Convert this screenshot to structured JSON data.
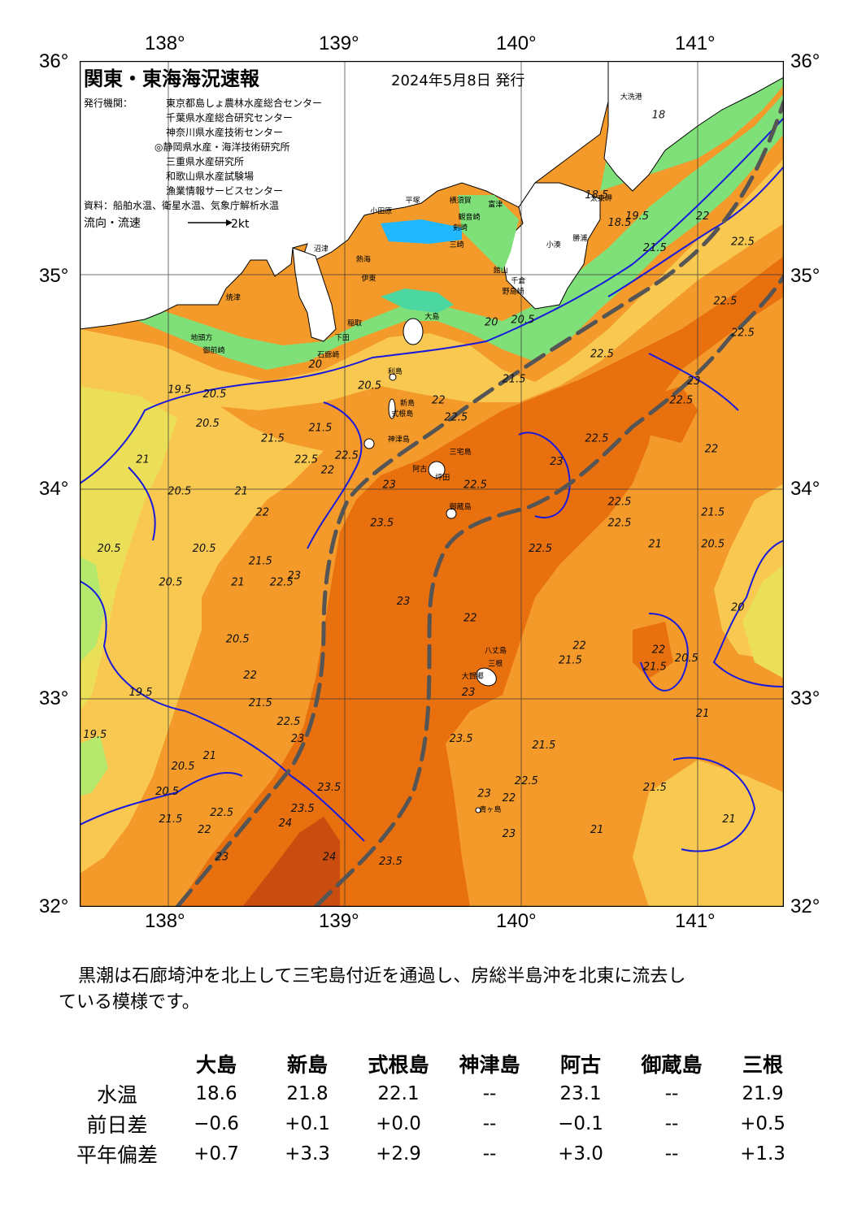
{
  "map": {
    "title": "関東・東海海況速報",
    "date": "2024年5月8日 発行",
    "publisher_label": "発行機関：",
    "publishers": [
      "東京都島しょ農林水産総合センター",
      "千葉県水産総合研究センター",
      "神奈川県水産技術センター",
      "◎静岡県水産・海洋技術研究所",
      "三重県水産研究所",
      "和歌山県水産試験場",
      "漁業情報サービスセンター"
    ],
    "source": "資料：船舶水温、衛星水温、気象庁解析水温",
    "flow_label": "流向・流速",
    "flow_scale": "2kt",
    "lon_labels": [
      "138°",
      "139°",
      "140°",
      "141°"
    ],
    "lat_labels": [
      "36°",
      "35°",
      "34°",
      "33°",
      "32°"
    ],
    "colors": {
      "kuroshio_axis": "#555555",
      "isotherm": "#1a1adc",
      "land": "#ffffff",
      "sea_warm": "#e8700f",
      "sea_hot": "#c84d0e",
      "sea_mid": "#f39a2a",
      "sea_cool": "#f8c850",
      "sea_cooler": "#ecdf58",
      "sea_cold": "#7fe07a",
      "sea_colder": "#4cd6a0"
    },
    "place_names": [
      {
        "name": "大洗港",
        "lon": 140.57,
        "lat": 35.82
      },
      {
        "name": "太東岬",
        "lon": 140.4,
        "lat": 35.34
      },
      {
        "name": "勝浦",
        "lon": 140.3,
        "lat": 35.15
      },
      {
        "name": "小湊",
        "lon": 140.15,
        "lat": 35.12
      },
      {
        "name": "富津",
        "lon": 139.82,
        "lat": 35.31
      },
      {
        "name": "館山",
        "lon": 139.85,
        "lat": 35.0
      },
      {
        "name": "千倉",
        "lon": 139.95,
        "lat": 34.95
      },
      {
        "name": "野島崎",
        "lon": 139.9,
        "lat": 34.9
      },
      {
        "name": "横須賀",
        "lon": 139.6,
        "lat": 35.33
      },
      {
        "name": "平塚",
        "lon": 139.35,
        "lat": 35.33
      },
      {
        "name": "小田原",
        "lon": 139.15,
        "lat": 35.28
      },
      {
        "name": "観音崎",
        "lon": 139.65,
        "lat": 35.25
      },
      {
        "name": "剣崎",
        "lon": 139.62,
        "lat": 35.2
      },
      {
        "name": "三崎",
        "lon": 139.6,
        "lat": 35.12
      },
      {
        "name": "熱海",
        "lon": 139.07,
        "lat": 35.05
      },
      {
        "name": "伊東",
        "lon": 139.1,
        "lat": 34.96
      },
      {
        "name": "稲取",
        "lon": 139.02,
        "lat": 34.75
      },
      {
        "name": "下田",
        "lon": 138.95,
        "lat": 34.68
      },
      {
        "name": "石廊崎",
        "lon": 138.85,
        "lat": 34.6
      },
      {
        "name": "大島",
        "lon": 139.46,
        "lat": 34.78
      },
      {
        "name": "利島",
        "lon": 139.25,
        "lat": 34.52
      },
      {
        "name": "新島",
        "lon": 139.32,
        "lat": 34.37
      },
      {
        "name": "式根島",
        "lon": 139.27,
        "lat": 34.32
      },
      {
        "name": "神津島",
        "lon": 139.25,
        "lat": 34.2
      },
      {
        "name": "三宅島",
        "lon": 139.6,
        "lat": 34.14
      },
      {
        "name": "阿古",
        "lon": 139.39,
        "lat": 34.06
      },
      {
        "name": "坪田",
        "lon": 139.52,
        "lat": 34.02
      },
      {
        "name": "御蔵島",
        "lon": 139.6,
        "lat": 33.88
      },
      {
        "name": "八丈島",
        "lon": 139.8,
        "lat": 33.2
      },
      {
        "name": "三根",
        "lon": 139.82,
        "lat": 33.14
      },
      {
        "name": "大賀郷",
        "lon": 139.67,
        "lat": 33.08
      },
      {
        "name": "青ヶ島",
        "lon": 139.77,
        "lat": 32.45
      },
      {
        "name": "沼津",
        "lon": 138.83,
        "lat": 35.1
      },
      {
        "name": "焼津",
        "lon": 138.33,
        "lat": 34.87
      },
      {
        "name": "御前崎",
        "lon": 138.2,
        "lat": 34.62
      },
      {
        "name": "地頭方",
        "lon": 138.13,
        "lat": 34.68
      }
    ],
    "isotherm_labels": [
      {
        "text": "18",
        "lon": 140.75,
        "lat": 35.73
      },
      {
        "text": "18.5",
        "lon": 140.37,
        "lat": 35.35
      },
      {
        "text": "18.5",
        "lon": 140.5,
        "lat": 35.22
      },
      {
        "text": "19.5",
        "lon": 140.6,
        "lat": 35.25
      },
      {
        "text": "21.5",
        "lon": 140.7,
        "lat": 35.1
      },
      {
        "text": "22",
        "lon": 141.0,
        "lat": 35.25
      },
      {
        "text": "22.5",
        "lon": 141.2,
        "lat": 35.13
      },
      {
        "text": "22.5",
        "lon": 141.1,
        "lat": 34.85
      },
      {
        "text": "22.5",
        "lon": 141.2,
        "lat": 34.7
      },
      {
        "text": "20",
        "lon": 139.8,
        "lat": 34.75
      },
      {
        "text": "20.5",
        "lon": 139.95,
        "lat": 34.76
      },
      {
        "text": "22",
        "lon": 139.5,
        "lat": 34.38
      },
      {
        "text": "22.5",
        "lon": 140.4,
        "lat": 34.6
      },
      {
        "text": "21.5",
        "lon": 139.9,
        "lat": 34.48
      },
      {
        "text": "22.5",
        "lon": 140.85,
        "lat": 34.38
      },
      {
        "text": "23",
        "lon": 140.95,
        "lat": 34.47
      },
      {
        "text": "22.5",
        "lon": 139.57,
        "lat": 34.3
      },
      {
        "text": "19.5",
        "lon": 138.0,
        "lat": 34.43
      },
      {
        "text": "20.5",
        "lon": 138.2,
        "lat": 34.41
      },
      {
        "text": "20",
        "lon": 138.8,
        "lat": 34.55
      },
      {
        "text": "20.5",
        "lon": 139.08,
        "lat": 34.45
      },
      {
        "text": "20.5",
        "lon": 138.16,
        "lat": 34.27
      },
      {
        "text": "21.5",
        "lon": 138.53,
        "lat": 34.2
      },
      {
        "text": "21.5",
        "lon": 138.8,
        "lat": 34.25
      },
      {
        "text": "22.5",
        "lon": 138.95,
        "lat": 34.12
      },
      {
        "text": "22.5",
        "lon": 138.72,
        "lat": 34.1
      },
      {
        "text": "22",
        "lon": 138.87,
        "lat": 34.05
      },
      {
        "text": "23",
        "lon": 139.22,
        "lat": 33.98
      },
      {
        "text": "22.5",
        "lon": 139.68,
        "lat": 33.98
      },
      {
        "text": "23",
        "lon": 140.17,
        "lat": 34.09
      },
      {
        "text": "22.5",
        "lon": 140.37,
        "lat": 34.2
      },
      {
        "text": "22",
        "lon": 141.05,
        "lat": 34.15
      },
      {
        "text": "21",
        "lon": 138.38,
        "lat": 33.95
      },
      {
        "text": "22",
        "lon": 138.5,
        "lat": 33.85
      },
      {
        "text": "21",
        "lon": 137.82,
        "lat": 34.1
      },
      {
        "text": "20.5",
        "lon": 138.0,
        "lat": 33.95
      },
      {
        "text": "20.5",
        "lon": 137.6,
        "lat": 33.68
      },
      {
        "text": "23.5",
        "lon": 139.15,
        "lat": 33.8
      },
      {
        "text": "22.5",
        "lon": 140.05,
        "lat": 33.68
      },
      {
        "text": "22.5",
        "lon": 140.5,
        "lat": 33.8
      },
      {
        "text": "22.5",
        "lon": 140.5,
        "lat": 33.9
      },
      {
        "text": "21",
        "lon": 140.73,
        "lat": 33.7
      },
      {
        "text": "21.5",
        "lon": 141.03,
        "lat": 33.85
      },
      {
        "text": "20.5",
        "lon": 141.03,
        "lat": 33.7
      },
      {
        "text": "20.5",
        "lon": 138.14,
        "lat": 33.68
      },
      {
        "text": "21.5",
        "lon": 138.46,
        "lat": 33.62
      },
      {
        "text": "21",
        "lon": 138.36,
        "lat": 33.52
      },
      {
        "text": "22.5",
        "lon": 138.58,
        "lat": 33.52
      },
      {
        "text": "23",
        "lon": 138.68,
        "lat": 33.55
      },
      {
        "text": "20.5",
        "lon": 137.95,
        "lat": 33.52
      },
      {
        "text": "23",
        "lon": 139.3,
        "lat": 33.43
      },
      {
        "text": "22",
        "lon": 139.68,
        "lat": 33.35
      },
      {
        "text": "20",
        "lon": 141.2,
        "lat": 33.4
      },
      {
        "text": "20.5",
        "lon": 138.33,
        "lat": 33.25
      },
      {
        "text": "22",
        "lon": 140.3,
        "lat": 33.22
      },
      {
        "text": "21.5",
        "lon": 140.22,
        "lat": 33.15
      },
      {
        "text": "22",
        "lon": 140.75,
        "lat": 33.2
      },
      {
        "text": "21.5",
        "lon": 140.7,
        "lat": 33.12
      },
      {
        "text": "20.5",
        "lon": 140.88,
        "lat": 33.16
      },
      {
        "text": "22",
        "lon": 138.43,
        "lat": 33.08
      },
      {
        "text": "19.5",
        "lon": 137.78,
        "lat": 33.0
      },
      {
        "text": "23",
        "lon": 139.67,
        "lat": 33.0
      },
      {
        "text": "21",
        "lon": 141.0,
        "lat": 32.9
      },
      {
        "text": "21.5",
        "lon": 138.46,
        "lat": 32.95
      },
      {
        "text": "22.5",
        "lon": 138.62,
        "lat": 32.86
      },
      {
        "text": "23",
        "lon": 138.7,
        "lat": 32.78
      },
      {
        "text": "19.5",
        "lon": 137.52,
        "lat": 32.8
      },
      {
        "text": "23.5",
        "lon": 139.6,
        "lat": 32.78
      },
      {
        "text": "21.5",
        "lon": 140.07,
        "lat": 32.75
      },
      {
        "text": "21",
        "lon": 138.2,
        "lat": 32.7
      },
      {
        "text": "20.5",
        "lon": 138.02,
        "lat": 32.65
      },
      {
        "text": "20.5",
        "lon": 137.93,
        "lat": 32.53
      },
      {
        "text": "22.5",
        "lon": 139.97,
        "lat": 32.58
      },
      {
        "text": "22",
        "lon": 139.9,
        "lat": 32.5
      },
      {
        "text": "23",
        "lon": 139.76,
        "lat": 32.52
      },
      {
        "text": "23.5",
        "lon": 138.85,
        "lat": 32.55
      },
      {
        "text": "21.5",
        "lon": 140.7,
        "lat": 32.55
      },
      {
        "text": "23.5",
        "lon": 138.7,
        "lat": 32.45
      },
      {
        "text": "22.5",
        "lon": 138.24,
        "lat": 32.43
      },
      {
        "text": "21.5",
        "lon": 137.95,
        "lat": 32.4
      },
      {
        "text": "22",
        "lon": 138.17,
        "lat": 32.35
      },
      {
        "text": "21",
        "lon": 141.15,
        "lat": 32.4
      },
      {
        "text": "24",
        "lon": 138.63,
        "lat": 32.38
      },
      {
        "text": "23",
        "lon": 139.9,
        "lat": 32.33
      },
      {
        "text": "21",
        "lon": 140.4,
        "lat": 32.35
      },
      {
        "text": "23",
        "lon": 138.27,
        "lat": 32.22
      },
      {
        "text": "24",
        "lon": 138.88,
        "lat": 32.22
      },
      {
        "text": "23.5",
        "lon": 139.2,
        "lat": 32.2
      }
    ]
  },
  "summary": {
    "line1": "黒潮は石廊埼沖を北上して三宅島付近を通過し、房総半島沖を北東に流去し",
    "line2": "ている模様です。"
  },
  "table": {
    "stations": [
      "大島",
      "新島",
      "式根島",
      "神津島",
      "阿古",
      "御蔵島",
      "三根"
    ],
    "rows": [
      {
        "label": "水温",
        "values": [
          "18.6",
          "21.8",
          "22.1",
          "--",
          "23.1",
          "--",
          "21.9"
        ]
      },
      {
        "label": "前日差",
        "values": [
          "−0.6",
          "+0.1",
          "+0.0",
          "--",
          "−0.1",
          "--",
          "+0.5"
        ]
      },
      {
        "label": "平年偏差",
        "values": [
          "+0.7",
          "+3.3",
          "+2.9",
          "--",
          "+3.0",
          "--",
          "+1.3"
        ]
      }
    ]
  }
}
